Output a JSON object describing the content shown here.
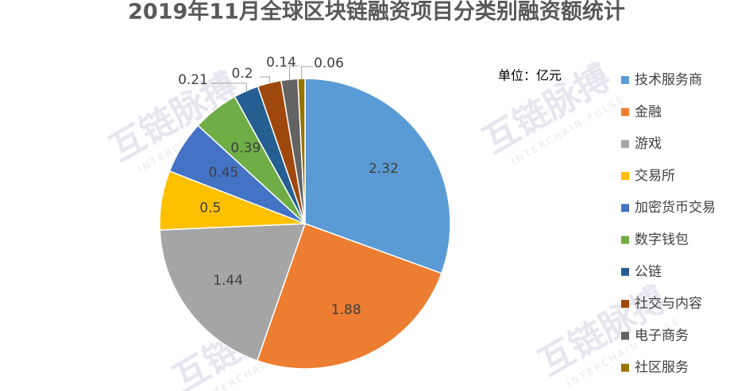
{
  "chart_data": {
    "type": "pie",
    "title": "2019年11月全球区块链融资项目分类别融资额统计",
    "unit": "单位：亿元",
    "watermark": "互链脉搏",
    "watermark_sub": "INTERCHAIN PULSE",
    "categories": [
      "技术服务商",
      "金融",
      "游戏",
      "交易所",
      "加密货币交易",
      "数字钱包",
      "公链",
      "社交与内容",
      "电子商务",
      "社区服务"
    ],
    "values": [
      2.32,
      1.88,
      1.44,
      0.5,
      0.45,
      0.39,
      0.21,
      0.2,
      0.14,
      0.06
    ],
    "colors": [
      "#5b9bd5",
      "#ed7d31",
      "#a5a5a5",
      "#ffc000",
      "#4472c4",
      "#70ad47",
      "#255e91",
      "#9e480e",
      "#636363",
      "#997300"
    ],
    "legend": "right"
  }
}
